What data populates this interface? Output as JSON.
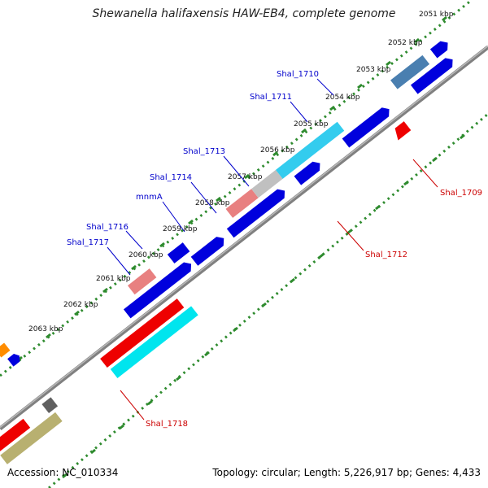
{
  "title": "Shewanella halifaxensis HAW-EB4, complete genome",
  "footer": {
    "accession": "Accession: NC_010334",
    "summary": "Topology: circular; Length: 5,226,917 bp; Genes: 4,433"
  },
  "ticks": [
    "2051 kbp",
    "2052 kbp",
    "2053 kbp",
    "2054 kbp",
    "2055 kbp",
    "2056 kbp",
    "2057 kbp",
    "2058 kbp",
    "2059 kbp",
    "2060 kbp",
    "2061 kbp",
    "2062 kbp",
    "2063 kbp"
  ],
  "gene_labels": {
    "shal_1709": "Shal_1709",
    "shal_1710": "Shal_1710",
    "shal_1711": "Shal_1711",
    "shal_1712": "Shal_1712",
    "shal_1713": "Shal_1713",
    "shal_1714": "Shal_1714",
    "mnma": "mnmA",
    "shal_1716": "Shal_1716",
    "shal_1717": "Shal_1717",
    "shal_1718": "Shal_1718"
  },
  "colors": {
    "backbone": "#808080",
    "tick_dots": "#2e8b2e",
    "label_forward": "#0000cc",
    "label_reverse": "#cc0000",
    "blue": "#0000dd",
    "red": "#ee0000",
    "cyan": "#00e5ee",
    "orange": "#ff8c00",
    "gray": "#606060",
    "steel": "#4a7fb0",
    "skyblue": "#33ccee",
    "silver": "#c0c0c0",
    "pink": "#e88080",
    "olive": "#b8b070"
  }
}
